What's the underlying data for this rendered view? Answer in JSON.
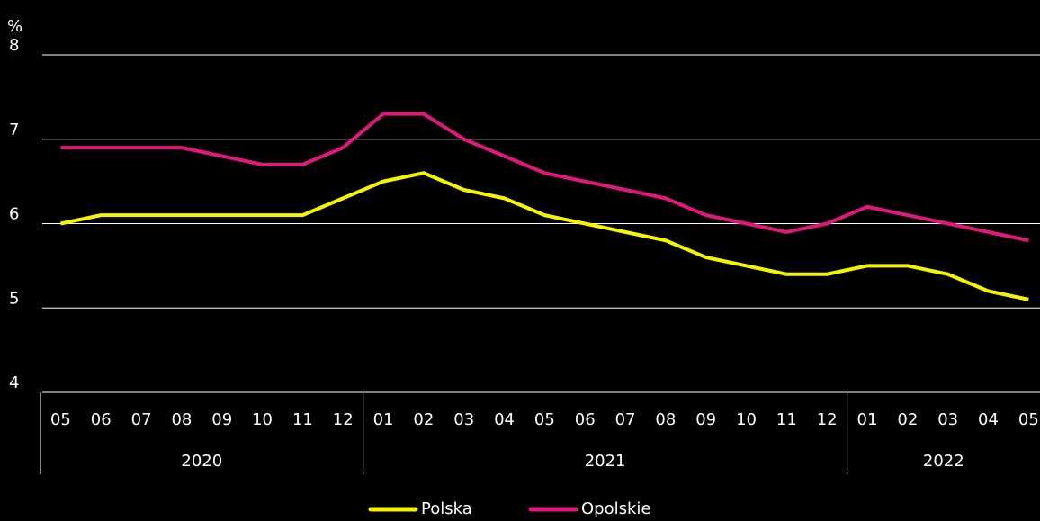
{
  "chart_data": {
    "type": "line",
    "y_label": "%",
    "categories": [
      "05",
      "06",
      "07",
      "08",
      "09",
      "10",
      "11",
      "12",
      "01",
      "02",
      "03",
      "04",
      "05",
      "06",
      "07",
      "08",
      "09",
      "10",
      "11",
      "12",
      "01",
      "02",
      "03",
      "04",
      "05"
    ],
    "category_groups": [
      {
        "label": "2020",
        "span": 8
      },
      {
        "label": "2021",
        "span": 12
      },
      {
        "label": "2022",
        "span": 5
      }
    ],
    "series": [
      {
        "name": "Polska",
        "color": "#f5f500",
        "values": [
          6.0,
          6.1,
          6.1,
          6.1,
          6.1,
          6.1,
          6.1,
          6.3,
          6.5,
          6.6,
          6.4,
          6.3,
          6.1,
          6.0,
          5.9,
          5.8,
          5.6,
          5.5,
          5.4,
          5.4,
          5.5,
          5.5,
          5.4,
          5.2,
          5.1
        ]
      },
      {
        "name": "Opolskie",
        "color": "#e0187a",
        "values": [
          6.9,
          6.9,
          6.9,
          6.9,
          6.8,
          6.7,
          6.7,
          6.9,
          7.3,
          7.3,
          7.0,
          6.8,
          6.6,
          6.5,
          6.4,
          6.3,
          6.1,
          6.0,
          5.9,
          6.0,
          6.2,
          6.1,
          6.0,
          5.9,
          5.8
        ]
      }
    ],
    "ylim": [
      4,
      8
    ],
    "yticks": [
      4,
      5,
      6,
      7,
      8
    ],
    "grid": true,
    "legend": "bottom"
  }
}
